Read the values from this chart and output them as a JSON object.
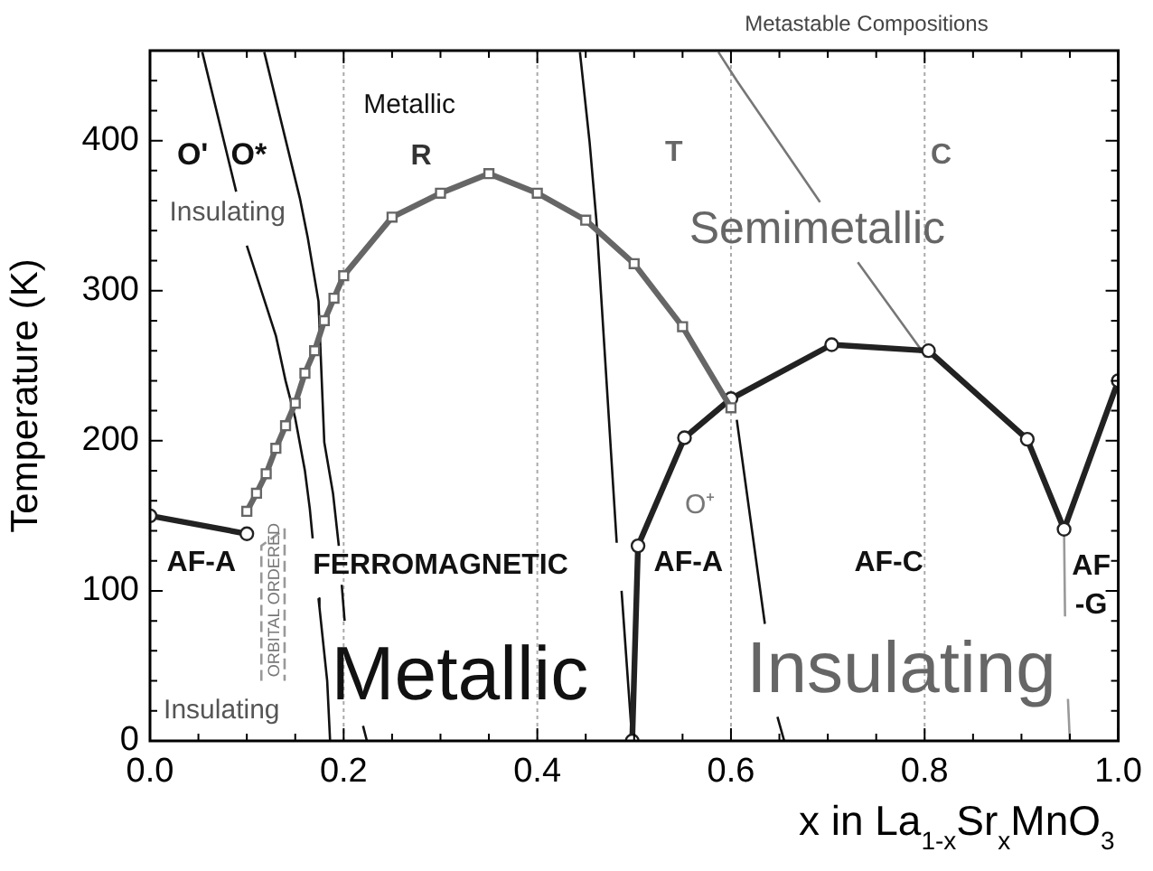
{
  "chart_data": {
    "type": "line",
    "xlabel": "x in La$_{1-x}$Sr$_{x}$MnO$_{3}$",
    "ylabel": "Temperature (K)",
    "xlim": [
      0,
      1
    ],
    "ylim": [
      0,
      460
    ],
    "xticks": [
      {
        "value": 0,
        "label": "0.0"
      },
      {
        "value": 0.05,
        "label": null
      },
      {
        "value": 0.1,
        "label": null
      },
      {
        "value": 0.15,
        "label": null
      },
      0.2,
      {
        "value": 0.25,
        "label": null
      },
      {
        "value": 0.3,
        "label": null
      },
      {
        "value": 0.35,
        "label": null
      },
      0.4,
      {
        "value": 0.45,
        "label": null
      },
      {
        "value": 0.5,
        "label": null
      },
      {
        "value": 0.55,
        "label": null
      },
      0.6,
      {
        "value": 0.65,
        "label": null
      },
      {
        "value": 0.7,
        "label": null
      },
      {
        "value": 0.75,
        "label": null
      },
      0.8,
      {
        "value": 0.85,
        "label": null
      },
      {
        "value": 0.9,
        "label": null
      },
      {
        "value": 0.95,
        "label": null
      },
      {
        "value": 1,
        "label": "1.0"
      }
    ],
    "yticks": [
      0,
      {
        "value": 20,
        "label": null
      },
      {
        "value": 40,
        "label": null
      },
      {
        "value": 60,
        "label": null
      },
      {
        "value": 80,
        "label": null
      },
      100,
      {
        "value": 120,
        "label": null
      },
      {
        "value": 140,
        "label": null
      },
      {
        "value": 160,
        "label": null
      },
      {
        "value": 180,
        "label": null
      },
      200,
      {
        "value": 220,
        "label": null
      },
      {
        "value": 240,
        "label": null
      },
      {
        "value": 260,
        "label": null
      },
      {
        "value": 280,
        "label": null
      },
      300,
      {
        "value": 320,
        "label": null
      },
      {
        "value": 340,
        "label": null
      },
      {
        "value": 360,
        "label": null
      },
      {
        "value": 380,
        "label": null
      },
      400,
      {
        "value": 420,
        "label": null
      },
      {
        "value": 440,
        "label": null
      }
    ],
    "grid": false,
    "legend": false,
    "series": [
      {
        "color": "#666666",
        "marker": "square",
        "x": [
          0.1,
          0.11,
          0.12,
          0.13,
          0.14,
          0.15,
          0.16,
          0.17,
          0.18,
          0.19,
          0.2,
          0.25,
          0.3,
          0.35,
          0.4,
          0.45,
          0.5,
          0.55,
          0.6
        ],
        "values": [
          153,
          165,
          178,
          195,
          210,
          225,
          245,
          260,
          280,
          295,
          310,
          349,
          365,
          378,
          365,
          347,
          318,
          276,
          222
        ]
      },
      {
        "color": "#222222",
        "marker": "circle",
        "x": [
          0,
          0.1
        ],
        "values": [
          150,
          138
        ]
      },
      {
        "color": "#222222",
        "marker": "circle",
        "x": [
          0.498,
          0.504,
          0.552,
          0.6,
          0.704,
          0.804,
          0.906,
          0.944,
          1
        ],
        "values": [
          0,
          130,
          202,
          228,
          264,
          260,
          201,
          141,
          240
        ]
      },
      {
        "color": "#111111",
        "marker": "none",
        "x": [
          0.054,
          0.089,
          0.095,
          0.1,
          0.11,
          0.12,
          0.13,
          0.14,
          0.15,
          0.16,
          0.165,
          0.168,
          0.171,
          0.174,
          0.175,
          0.183,
          0.186
        ],
        "values": [
          459,
          366,
          null,
          330,
          310,
          290,
          270,
          240,
          215,
          180,
          155,
          135,
          null,
          95,
          89,
          40,
          0
        ]
      },
      {
        "color": "#111111",
        "marker": "none",
        "x": [
          0.118,
          0.155,
          0.163,
          0.174,
          0.18,
          0.189,
          0.195,
          0.197,
          0.198,
          0.201,
          0.21,
          0.22,
          0.224
        ],
        "values": [
          459,
          361,
          335,
          293,
          199,
          165,
          130,
          null,
          104,
          80,
          null,
          10,
          0
        ]
      },
      {
        "color": "#111111",
        "marker": "none",
        "x": [
          0.444,
          0.454,
          0.461,
          0.482,
          0.485,
          0.487,
          0.498
        ],
        "values": [
          459,
          399,
          347,
          132,
          null,
          100,
          0
        ]
      },
      {
        "color": "#777777",
        "marker": "none",
        "x": [
          0.587,
          0.606,
          0.692,
          0.71,
          0.731,
          0.796
        ],
        "values": [
          459,
          440,
          359,
          null,
          319,
          261
        ]
      },
      {
        "color": "#111111",
        "marker": "none",
        "x": [
          0.606,
          0.635,
          0.64,
          0.648,
          0.655
        ],
        "values": [
          214,
          78,
          null,
          16,
          0
        ]
      },
      {
        "color": "#999999",
        "marker": "none",
        "x": [
          0.944,
          0.945,
          0.946,
          0.948,
          0.95
        ],
        "values": [
          141,
          83,
          null,
          28,
          0
        ]
      },
      {
        "color": "#999999",
        "marker": "none",
        "line_style": "dashed",
        "x": [
          0.115,
          0.115,
          0.139,
          0.139
        ],
        "values": [
          40,
          130,
          141,
          40
        ]
      }
    ],
    "ref_lines": [
      {
        "axis": "x",
        "value": 0.2,
        "color": "#aaaaaa",
        "line_style": "dotted"
      },
      {
        "axis": "x",
        "value": 0.4,
        "color": "#aaaaaa",
        "line_style": "dotted"
      },
      {
        "axis": "x",
        "value": 0.6,
        "color": "#aaaaaa",
        "line_style": "dotted"
      },
      {
        "axis": "x",
        "value": 0.8,
        "color": "#aaaaaa",
        "line_style": "dotted"
      }
    ],
    "annotations": [
      "Metastable Compositions",
      "O'",
      "O*",
      "Insulating",
      "Metallic",
      "R",
      "T",
      "C",
      "Semimetallic",
      "O⁺",
      "AF-A",
      "FERROMAGNETIC",
      "ORBITAL ORDERED",
      "Insulating",
      "Metallic",
      "AF-A",
      "AF-C",
      "Insulating",
      "AF\n-G"
    ]
  }
}
